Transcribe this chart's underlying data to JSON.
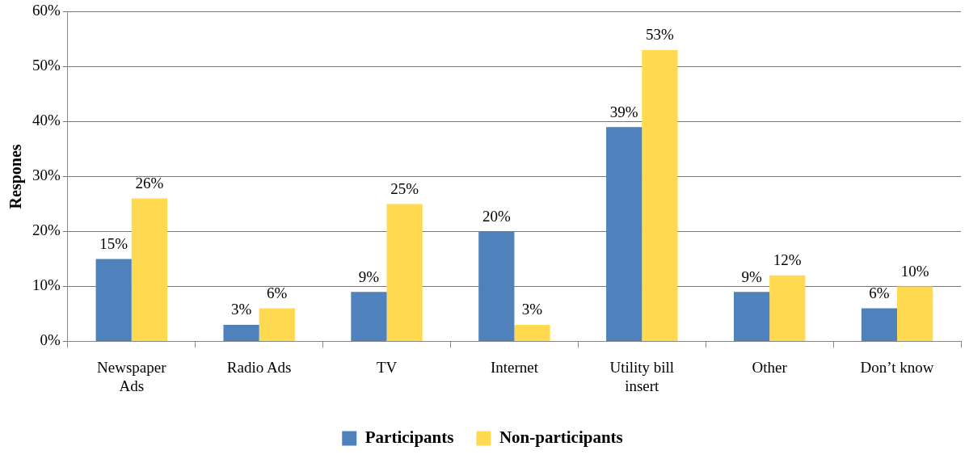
{
  "chart_data": {
    "type": "bar",
    "ylabel": "Respones",
    "categories": [
      "Newspaper Ads",
      "Radio Ads",
      "TV",
      "Internet",
      "Utility bill insert",
      "Other",
      "Don’t know"
    ],
    "series": [
      {
        "name": "Participants",
        "color": "#4f81bd",
        "values": [
          15,
          3,
          9,
          20,
          39,
          9,
          6
        ],
        "value_labels": [
          "15%",
          "3%",
          "9%",
          "20%",
          "39%",
          "9%",
          "6%"
        ]
      },
      {
        "name": "Non-participants",
        "color": "#ffd94f",
        "values": [
          26,
          6,
          25,
          3,
          53,
          12,
          10
        ],
        "value_labels": [
          "26%",
          "6%",
          "25%",
          "3%",
          "53%",
          "12%",
          "10%"
        ]
      }
    ],
    "ylim": [
      0,
      60
    ],
    "yticks": [
      {
        "value": 0,
        "label": "0%"
      },
      {
        "value": 10,
        "label": "10%"
      },
      {
        "value": 20,
        "label": "20%"
      },
      {
        "value": 30,
        "label": "30%"
      },
      {
        "value": 40,
        "label": "40%"
      },
      {
        "value": 50,
        "label": "50%"
      },
      {
        "value": 60,
        "label": "60%"
      }
    ],
    "grid": "y",
    "legend": "bottom"
  }
}
